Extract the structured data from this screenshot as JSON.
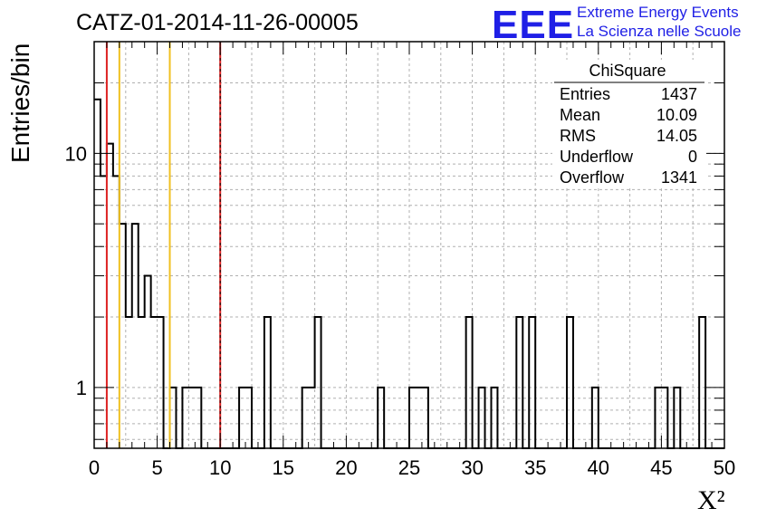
{
  "chart_data": {
    "type": "bar",
    "title": "CATZ-01-2014-11-26-00005",
    "xlabel": "X²",
    "ylabel": "Entries/bin",
    "xlim": [
      0,
      50
    ],
    "ylim": [
      0.55,
      30
    ],
    "log_y": true,
    "grid": true,
    "bin_width": 0.5,
    "bins": [
      {
        "x": 0.0,
        "y": 17
      },
      {
        "x": 0.5,
        "y": 8
      },
      {
        "x": 1.0,
        "y": 11
      },
      {
        "x": 1.5,
        "y": 8
      },
      {
        "x": 2.0,
        "y": 5
      },
      {
        "x": 2.5,
        "y": 2
      },
      {
        "x": 3.0,
        "y": 5
      },
      {
        "x": 3.5,
        "y": 2
      },
      {
        "x": 4.0,
        "y": 3
      },
      {
        "x": 4.5,
        "y": 2
      },
      {
        "x": 5.0,
        "y": 2
      },
      {
        "x": 6.0,
        "y": 1
      },
      {
        "x": 7.0,
        "y": 1
      },
      {
        "x": 7.5,
        "y": 1
      },
      {
        "x": 8.0,
        "y": 1
      },
      {
        "x": 11.5,
        "y": 1
      },
      {
        "x": 12.0,
        "y": 1
      },
      {
        "x": 13.5,
        "y": 2
      },
      {
        "x": 16.5,
        "y": 1
      },
      {
        "x": 17.0,
        "y": 1
      },
      {
        "x": 17.5,
        "y": 2
      },
      {
        "x": 22.5,
        "y": 1
      },
      {
        "x": 25.0,
        "y": 1
      },
      {
        "x": 25.5,
        "y": 1
      },
      {
        "x": 26.0,
        "y": 1
      },
      {
        "x": 29.5,
        "y": 2
      },
      {
        "x": 30.5,
        "y": 1
      },
      {
        "x": 31.5,
        "y": 1
      },
      {
        "x": 33.5,
        "y": 2
      },
      {
        "x": 34.5,
        "y": 2
      },
      {
        "x": 37.5,
        "y": 2
      },
      {
        "x": 39.5,
        "y": 1
      },
      {
        "x": 44.5,
        "y": 1
      },
      {
        "x": 45.0,
        "y": 1
      },
      {
        "x": 46.0,
        "y": 1
      },
      {
        "x": 48.0,
        "y": 2
      }
    ],
    "x_ticks": [
      0,
      5,
      10,
      15,
      20,
      25,
      30,
      35,
      40,
      45,
      50
    ],
    "y_ticks": [
      1,
      10
    ],
    "vlines": [
      {
        "x": 1,
        "color": "#dd2222",
        "dashed": false
      },
      {
        "x": 2,
        "color": "#f0c020",
        "dashed": false
      },
      {
        "x": 6,
        "color": "#f0c020",
        "dashed": false
      },
      {
        "x": 10,
        "color": "#dd2222",
        "dashed": true
      }
    ],
    "stats": {
      "name": "ChiSquare",
      "rows": [
        {
          "label": "Entries",
          "value": "1437"
        },
        {
          "label": "Mean",
          "value": "10.09"
        },
        {
          "label": "RMS",
          "value": "14.05"
        },
        {
          "label": "Underflow",
          "value": "0"
        },
        {
          "label": "Overflow",
          "value": "1341"
        }
      ]
    }
  },
  "logo": {
    "mark": "EEE",
    "line1": "Extreme Energy Events",
    "line2": "La Scienza nelle Scuole",
    "color": "#1f1fe6"
  }
}
